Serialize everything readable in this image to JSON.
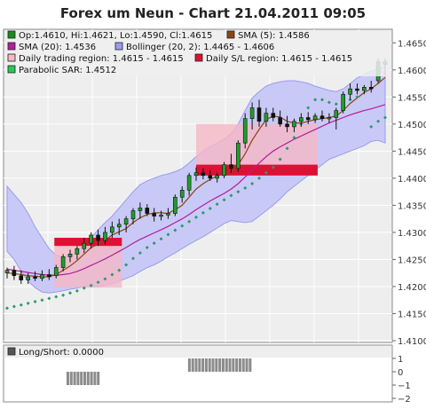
{
  "chart_data": [
    {
      "type": "candlestick",
      "title": "Forex um Neun - Chart 21.04.2011 09:05",
      "ylim": [
        1.41,
        1.4675
      ],
      "y_ticks": [
        "1.4650",
        "1.4600",
        "1.4550",
        "1.4500",
        "1.4450",
        "1.4400",
        "1.4350",
        "1.4300",
        "1.4250",
        "1.4200",
        "1.4150",
        "1.4100"
      ],
      "y_tick_values": [
        1.465,
        1.46,
        1.455,
        1.45,
        1.445,
        1.44,
        1.435,
        1.43,
        1.425,
        1.42,
        1.415,
        1.41
      ],
      "grid": true,
      "legend": [
        {
          "label": "Op:1.4610, Hi:1.4621, Lo:1.4590, Cl:1.4615",
          "color": "#1a8a1a"
        },
        {
          "label": "SMA (5): 1.4586",
          "color": "#8b4513"
        },
        {
          "label": "SMA (20): 1.4536",
          "color": "#b0209a"
        },
        {
          "label": "Bollinger (20, 2): 1.4465 - 1.4606",
          "color": "#9b9bee"
        },
        {
          "label": "Daily trading region: 1.4615 - 1.4615",
          "color": "#f5b8c6"
        },
        {
          "label": "Daily S/L region: 1.4615 - 1.4615",
          "color": "#dd1133"
        },
        {
          "label": "Parabolic SAR: 1.4512",
          "color": "#22cc55"
        }
      ],
      "candles": [
        {
          "o": 1.4225,
          "h": 1.4235,
          "l": 1.4215,
          "c": 1.423
        },
        {
          "o": 1.423,
          "h": 1.4238,
          "l": 1.4212,
          "c": 1.422
        },
        {
          "o": 1.422,
          "h": 1.423,
          "l": 1.4205,
          "c": 1.4212
        },
        {
          "o": 1.4212,
          "h": 1.4225,
          "l": 1.4205,
          "c": 1.4218
        },
        {
          "o": 1.4218,
          "h": 1.4228,
          "l": 1.421,
          "c": 1.4215
        },
        {
          "o": 1.4215,
          "h": 1.423,
          "l": 1.421,
          "c": 1.4222
        },
        {
          "o": 1.4222,
          "h": 1.4232,
          "l": 1.4212,
          "c": 1.4218
        },
        {
          "o": 1.422,
          "h": 1.424,
          "l": 1.4215,
          "c": 1.4235
        },
        {
          "o": 1.4235,
          "h": 1.426,
          "l": 1.4228,
          "c": 1.4255
        },
        {
          "o": 1.4255,
          "h": 1.4268,
          "l": 1.4245,
          "c": 1.426
        },
        {
          "o": 1.426,
          "h": 1.4275,
          "l": 1.425,
          "c": 1.427
        },
        {
          "o": 1.427,
          "h": 1.429,
          "l": 1.4262,
          "c": 1.428
        },
        {
          "o": 1.428,
          "h": 1.43,
          "l": 1.427,
          "c": 1.4295
        },
        {
          "o": 1.4295,
          "h": 1.4305,
          "l": 1.4275,
          "c": 1.4285
        },
        {
          "o": 1.4285,
          "h": 1.431,
          "l": 1.4278,
          "c": 1.43
        },
        {
          "o": 1.43,
          "h": 1.432,
          "l": 1.429,
          "c": 1.431
        },
        {
          "o": 1.431,
          "h": 1.4325,
          "l": 1.4295,
          "c": 1.4315
        },
        {
          "o": 1.4315,
          "h": 1.433,
          "l": 1.43,
          "c": 1.4325
        },
        {
          "o": 1.4325,
          "h": 1.4345,
          "l": 1.4315,
          "c": 1.434
        },
        {
          "o": 1.434,
          "h": 1.4355,
          "l": 1.4325,
          "c": 1.4345
        },
        {
          "o": 1.4345,
          "h": 1.4352,
          "l": 1.433,
          "c": 1.4335
        },
        {
          "o": 1.4335,
          "h": 1.4345,
          "l": 1.432,
          "c": 1.433
        },
        {
          "o": 1.433,
          "h": 1.434,
          "l": 1.4322,
          "c": 1.4332
        },
        {
          "o": 1.4332,
          "h": 1.4345,
          "l": 1.4325,
          "c": 1.4335
        },
        {
          "o": 1.4335,
          "h": 1.437,
          "l": 1.433,
          "c": 1.4365
        },
        {
          "o": 1.4365,
          "h": 1.4385,
          "l": 1.4355,
          "c": 1.4378
        },
        {
          "o": 1.4378,
          "h": 1.441,
          "l": 1.4368,
          "c": 1.4405
        },
        {
          "o": 1.4405,
          "h": 1.442,
          "l": 1.4395,
          "c": 1.441
        },
        {
          "o": 1.441,
          "h": 1.4418,
          "l": 1.4398,
          "c": 1.4405
        },
        {
          "o": 1.4405,
          "h": 1.4415,
          "l": 1.4395,
          "c": 1.44
        },
        {
          "o": 1.44,
          "h": 1.441,
          "l": 1.4392,
          "c": 1.4405
        },
        {
          "o": 1.4405,
          "h": 1.443,
          "l": 1.44,
          "c": 1.4425
        },
        {
          "o": 1.4425,
          "h": 1.4445,
          "l": 1.441,
          "c": 1.4418
        },
        {
          "o": 1.4418,
          "h": 1.447,
          "l": 1.4412,
          "c": 1.4465
        },
        {
          "o": 1.4465,
          "h": 1.452,
          "l": 1.4455,
          "c": 1.451
        },
        {
          "o": 1.451,
          "h": 1.454,
          "l": 1.449,
          "c": 1.453
        },
        {
          "o": 1.453,
          "h": 1.4545,
          "l": 1.4495,
          "c": 1.4505
        },
        {
          "o": 1.4505,
          "h": 1.453,
          "l": 1.4495,
          "c": 1.452
        },
        {
          "o": 1.452,
          "h": 1.453,
          "l": 1.4505,
          "c": 1.4512
        },
        {
          "o": 1.4512,
          "h": 1.4525,
          "l": 1.4495,
          "c": 1.45
        },
        {
          "o": 1.45,
          "h": 1.4515,
          "l": 1.4485,
          "c": 1.4495
        },
        {
          "o": 1.4495,
          "h": 1.451,
          "l": 1.4485,
          "c": 1.4505
        },
        {
          "o": 1.4505,
          "h": 1.452,
          "l": 1.4495,
          "c": 1.4512
        },
        {
          "o": 1.4512,
          "h": 1.4522,
          "l": 1.45,
          "c": 1.4508
        },
        {
          "o": 1.4508,
          "h": 1.452,
          "l": 1.4502,
          "c": 1.4515
        },
        {
          "o": 1.4515,
          "h": 1.4525,
          "l": 1.4505,
          "c": 1.451
        },
        {
          "o": 1.451,
          "h": 1.452,
          "l": 1.4502,
          "c": 1.4512
        },
        {
          "o": 1.4512,
          "h": 1.453,
          "l": 1.449,
          "c": 1.4525
        },
        {
          "o": 1.4525,
          "h": 1.456,
          "l": 1.452,
          "c": 1.4555
        },
        {
          "o": 1.4555,
          "h": 1.4575,
          "l": 1.4545,
          "c": 1.4565
        },
        {
          "o": 1.4565,
          "h": 1.4575,
          "l": 1.4555,
          "c": 1.4562
        },
        {
          "o": 1.4562,
          "h": 1.4572,
          "l": 1.4555,
          "c": 1.4568
        },
        {
          "o": 1.4568,
          "h": 1.458,
          "l": 1.4558,
          "c": 1.4565
        },
        {
          "o": 1.458,
          "h": 1.4621,
          "l": 1.4575,
          "c": 1.4615
        },
        {
          "o": 1.461,
          "h": 1.4621,
          "l": 1.459,
          "c": 1.4615
        }
      ],
      "sma5": [
        1.4225,
        1.4224,
        1.4222,
        1.422,
        1.4219,
        1.4218,
        1.4218,
        1.4222,
        1.423,
        1.4238,
        1.4248,
        1.426,
        1.4272,
        1.4278,
        1.4286,
        1.4295,
        1.4301,
        1.4307,
        1.4318,
        1.4327,
        1.4333,
        1.4336,
        1.4336,
        1.4335,
        1.4342,
        1.435,
        1.4365,
        1.438,
        1.439,
        1.4398,
        1.4404,
        1.4409,
        1.441,
        1.4425,
        1.4445,
        1.447,
        1.449,
        1.4508,
        1.4515,
        1.4513,
        1.4505,
        1.4502,
        1.4502,
        1.4505,
        1.4508,
        1.451,
        1.4512,
        1.4515,
        1.4525,
        1.4538,
        1.4548,
        1.4558,
        1.4565,
        1.4575,
        1.4586
      ],
      "sma20": [
        1.4232,
        1.423,
        1.4228,
        1.4226,
        1.4224,
        1.4222,
        1.4221,
        1.4221,
        1.4222,
        1.4224,
        1.4228,
        1.4233,
        1.4239,
        1.4245,
        1.4251,
        1.4258,
        1.4265,
        1.4272,
        1.428,
        1.4287,
        1.4293,
        1.4299,
        1.4305,
        1.4311,
        1.4318,
        1.4325,
        1.4333,
        1.4342,
        1.435,
        1.4358,
        1.4365,
        1.4372,
        1.438,
        1.439,
        1.4402,
        1.4415,
        1.4428,
        1.444,
        1.445,
        1.4458,
        1.4465,
        1.4472,
        1.4478,
        1.4484,
        1.449,
        1.4496,
        1.4502,
        1.4507,
        1.4512,
        1.4517,
        1.4521,
        1.4525,
        1.4528,
        1.4532,
        1.4536
      ],
      "bb_upper": [
        1.4385,
        1.437,
        1.4355,
        1.4335,
        1.431,
        1.429,
        1.427,
        1.4258,
        1.4255,
        1.4258,
        1.4265,
        1.4275,
        1.429,
        1.4305,
        1.4318,
        1.433,
        1.4345,
        1.436,
        1.4375,
        1.4388,
        1.4395,
        1.44,
        1.4405,
        1.4408,
        1.4412,
        1.4418,
        1.4428,
        1.444,
        1.445,
        1.4458,
        1.4465,
        1.4472,
        1.4482,
        1.45,
        1.4525,
        1.4548,
        1.456,
        1.457,
        1.4575,
        1.4578,
        1.458,
        1.458,
        1.4578,
        1.4575,
        1.457,
        1.4566,
        1.4562,
        1.456,
        1.4565,
        1.4575,
        1.4585,
        1.4592,
        1.4598,
        1.4602,
        1.4606
      ],
      "bb_lower": [
        1.4265,
        1.425,
        1.4228,
        1.421,
        1.4198,
        1.419,
        1.4188,
        1.419,
        1.4192,
        1.4195,
        1.4197,
        1.42,
        1.42,
        1.42,
        1.4202,
        1.4205,
        1.421,
        1.4215,
        1.422,
        1.4228,
        1.4235,
        1.424,
        1.4247,
        1.4255,
        1.4262,
        1.427,
        1.4278,
        1.4285,
        1.4292,
        1.43,
        1.4308,
        1.4316,
        1.4322,
        1.432,
        1.4318,
        1.432,
        1.433,
        1.434,
        1.435,
        1.4362,
        1.4375,
        1.4385,
        1.4395,
        1.4405,
        1.4415,
        1.4425,
        1.4435,
        1.444,
        1.4445,
        1.445,
        1.4455,
        1.446,
        1.4468,
        1.447,
        1.4465
      ],
      "sar": [
        1.416,
        1.4163,
        1.4166,
        1.4169,
        1.4172,
        1.4175,
        1.4178,
        1.4181,
        1.4184,
        1.4188,
        1.4192,
        1.4197,
        1.4202,
        1.4208,
        1.4214,
        1.4222,
        1.423,
        1.424,
        1.4252,
        1.4262,
        1.4272,
        1.428,
        1.4288,
        1.4296,
        1.4304,
        1.4312,
        1.432,
        1.4328,
        1.4336,
        1.4344,
        1.4352,
        1.436,
        1.4368,
        1.4375,
        1.4382,
        1.439,
        1.44,
        1.441,
        1.442,
        1.4435,
        1.4455,
        1.4475,
        1.45,
        1.453,
        1.4545,
        1.4545,
        1.454,
        1.4537,
        1.454,
        1.4545,
        1.455,
        null,
        1.4495,
        1.4505,
        1.4512
      ],
      "trading_regions": [
        {
          "start": 14,
          "end": 34,
          "top": 1.429,
          "bottom": 1.4198
        },
        {
          "start": 56,
          "end": 92,
          "top": 1.45,
          "bottom": 1.4405
        }
      ],
      "sl_regions": [
        {
          "start": 14,
          "end": 34,
          "top": 1.429,
          "bottom": 1.4275
        },
        {
          "start": 56,
          "end": 92,
          "top": 1.4425,
          "bottom": 1.4405
        }
      ]
    },
    {
      "type": "bar",
      "title": "",
      "legend": [
        {
          "label": "Long/Short: 0.0000",
          "color": "#555555"
        }
      ],
      "ylim": [
        -2,
        1
      ],
      "y_ticks": [
        "1",
        "0",
        "−1",
        "−2"
      ],
      "y_tick_values": [
        1,
        0,
        -1,
        -2
      ],
      "values": [
        0,
        0,
        0,
        0,
        0,
        0,
        0,
        0,
        0,
        0,
        0,
        0,
        0,
        0,
        0,
        0,
        0,
        0,
        -1,
        -1,
        -1,
        -1,
        -1,
        -1,
        -1,
        -1,
        -1,
        -1,
        0,
        0,
        0,
        0,
        0,
        0,
        0,
        0,
        0,
        0,
        0,
        0,
        0,
        0,
        0,
        0,
        0,
        0,
        0,
        0,
        0,
        0,
        0,
        0,
        0,
        0,
        1,
        1,
        1,
        1,
        1,
        1,
        1,
        1,
        1,
        1,
        1,
        1,
        1,
        1,
        1,
        1,
        1,
        1,
        1,
        0,
        0,
        0,
        0,
        0,
        0,
        0,
        0,
        0,
        0,
        0,
        0,
        0,
        0,
        0,
        0,
        0,
        0,
        0,
        0,
        0,
        0,
        0,
        0,
        0,
        0,
        0,
        0,
        0,
        0,
        0,
        0,
        0,
        0,
        0,
        0,
        0,
        0,
        0,
        0,
        0,
        0,
        0,
        0,
        0,
        0,
        0,
        0,
        0,
        0,
        0,
        0,
        0,
        0,
        0,
        0,
        0,
        0,
        0,
        0,
        0,
        0,
        0,
        0,
        0
      ]
    }
  ]
}
